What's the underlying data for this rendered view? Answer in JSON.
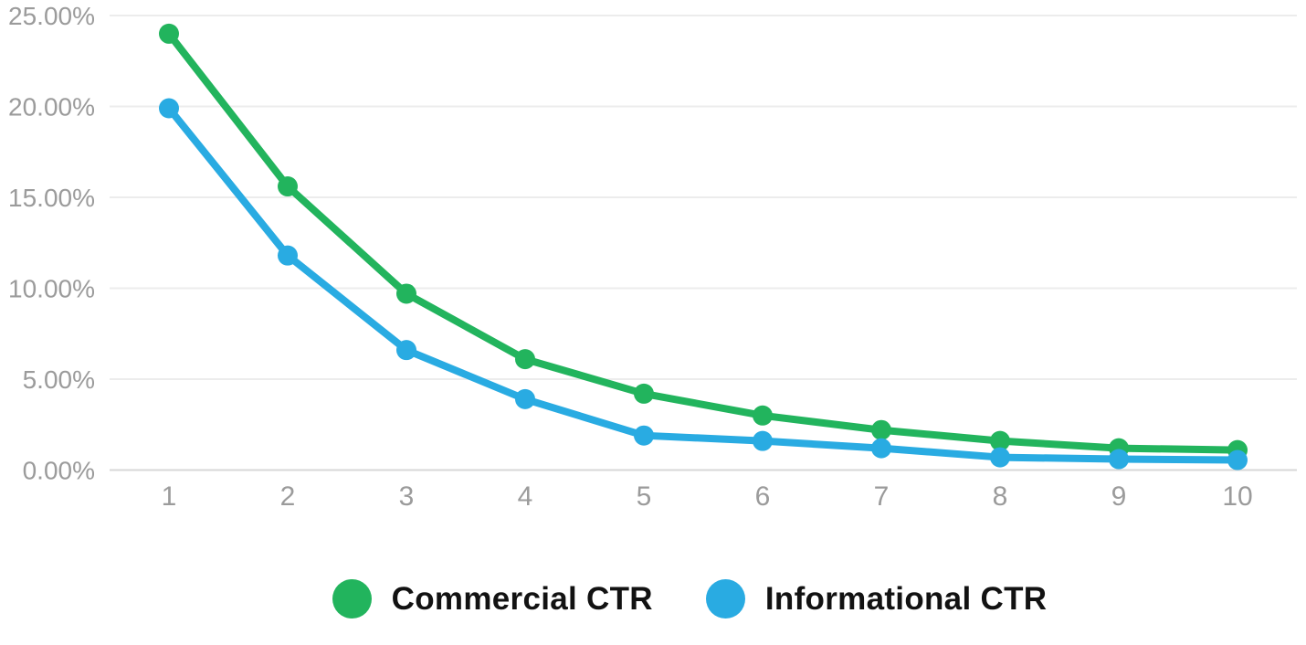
{
  "chart_data": {
    "type": "line",
    "title": "",
    "x": [
      "1",
      "2",
      "3",
      "4",
      "5",
      "6",
      "7",
      "8",
      "9",
      "10"
    ],
    "xlabel": "",
    "ylabel": "",
    "ylim": [
      0,
      25
    ],
    "y_tick_values": [
      0,
      5,
      10,
      15,
      20,
      25
    ],
    "y_ticks": [
      "0.00%",
      "5.00%",
      "10.00%",
      "15.00%",
      "20.00%",
      "25.00%"
    ],
    "grid": "horizontal",
    "legend_position": "bottom",
    "series": [
      {
        "id": "commercial",
        "name": "Commercial CTR",
        "color": "#22b45d",
        "values": [
          24.0,
          15.6,
          9.7,
          6.1,
          4.2,
          3.0,
          2.2,
          1.6,
          1.2,
          1.1
        ]
      },
      {
        "id": "informational",
        "name": "Informational CTR",
        "color": "#29abe2",
        "values": [
          19.9,
          11.8,
          6.6,
          3.9,
          1.9,
          1.6,
          1.2,
          0.7,
          0.6,
          0.55
        ]
      }
    ]
  },
  "styles": {
    "background": "#ffffff",
    "gridline": "#ececec",
    "axis_line": "#d7d7d7",
    "tick_label": "#9b9b9b",
    "legend_text": "#121212"
  }
}
